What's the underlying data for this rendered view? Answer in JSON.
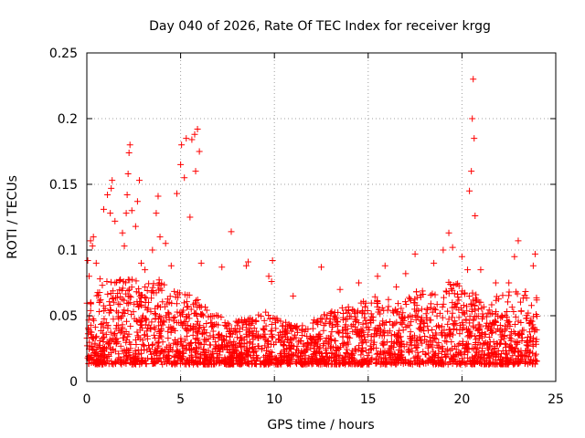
{
  "chart_data": {
    "type": "scatter",
    "title": "Day 040 of 2026, Rate Of TEC Index for receiver krgg",
    "xlabel": "GPS time / hours",
    "ylabel": "ROTI / TECUs",
    "xlim": [
      0,
      25
    ],
    "ylim": [
      0,
      0.25
    ],
    "x_ticks": [
      0,
      5,
      10,
      15,
      20,
      25
    ],
    "x_tick_labels": [
      "0",
      "5",
      "10",
      "15",
      "20",
      "25"
    ],
    "y_ticks": [
      0,
      0.05,
      0.1,
      0.15,
      0.2,
      0.25
    ],
    "y_tick_labels": [
      "0",
      "0.05",
      "0.1",
      "0.15",
      "0.2",
      "0.25"
    ],
    "grid": true,
    "marker": "plus",
    "marker_color": "#ff0000",
    "series": [
      {
        "name": "ROTI",
        "points": [
          [
            0.05,
            0.092
          ],
          [
            0.12,
            0.08
          ],
          [
            0.2,
            0.107
          ],
          [
            0.3,
            0.103
          ],
          [
            0.35,
            0.11
          ],
          [
            0.5,
            0.09
          ],
          [
            0.7,
            0.078
          ],
          [
            0.9,
            0.131
          ],
          [
            1.1,
            0.142
          ],
          [
            1.25,
            0.128
          ],
          [
            1.3,
            0.147
          ],
          [
            1.35,
            0.153
          ],
          [
            1.5,
            0.122
          ],
          [
            1.9,
            0.113
          ],
          [
            2.0,
            0.103
          ],
          [
            2.1,
            0.128
          ],
          [
            2.15,
            0.142
          ],
          [
            2.2,
            0.158
          ],
          [
            2.25,
            0.174
          ],
          [
            2.3,
            0.18
          ],
          [
            2.4,
            0.13
          ],
          [
            2.6,
            0.118
          ],
          [
            2.7,
            0.137
          ],
          [
            2.8,
            0.153
          ],
          [
            2.9,
            0.09
          ],
          [
            3.1,
            0.085
          ],
          [
            3.5,
            0.1
          ],
          [
            3.7,
            0.128
          ],
          [
            3.8,
            0.141
          ],
          [
            3.9,
            0.11
          ],
          [
            4.2,
            0.105
          ],
          [
            4.5,
            0.088
          ],
          [
            4.8,
            0.143
          ],
          [
            5.0,
            0.165
          ],
          [
            5.05,
            0.18
          ],
          [
            5.2,
            0.155
          ],
          [
            5.3,
            0.185
          ],
          [
            5.5,
            0.125
          ],
          [
            5.6,
            0.184
          ],
          [
            5.75,
            0.188
          ],
          [
            5.8,
            0.16
          ],
          [
            5.9,
            0.192
          ],
          [
            6.0,
            0.175
          ],
          [
            6.1,
            0.09
          ],
          [
            7.2,
            0.087
          ],
          [
            7.7,
            0.114
          ],
          [
            8.5,
            0.088
          ],
          [
            8.6,
            0.091
          ],
          [
            9.7,
            0.08
          ],
          [
            9.85,
            0.076
          ],
          [
            9.9,
            0.092
          ],
          [
            11.0,
            0.065
          ],
          [
            12.5,
            0.087
          ],
          [
            13.5,
            0.07
          ],
          [
            14.5,
            0.075
          ],
          [
            15.5,
            0.08
          ],
          [
            15.9,
            0.088
          ],
          [
            16.5,
            0.072
          ],
          [
            17.0,
            0.082
          ],
          [
            17.5,
            0.097
          ],
          [
            18.5,
            0.09
          ],
          [
            19.0,
            0.1
          ],
          [
            19.3,
            0.113
          ],
          [
            19.5,
            0.102
          ],
          [
            20.0,
            0.095
          ],
          [
            20.3,
            0.085
          ],
          [
            20.4,
            0.145
          ],
          [
            20.5,
            0.16
          ],
          [
            20.55,
            0.2
          ],
          [
            20.6,
            0.23
          ],
          [
            20.65,
            0.185
          ],
          [
            20.7,
            0.126
          ],
          [
            21.0,
            0.085
          ],
          [
            21.8,
            0.075
          ],
          [
            22.5,
            0.075
          ],
          [
            22.8,
            0.095
          ],
          [
            23.0,
            0.107
          ],
          [
            23.8,
            0.088
          ],
          [
            23.9,
            0.097
          ]
        ],
        "envelope": [
          [
            0.0,
            0.055
          ],
          [
            0.5,
            0.06
          ],
          [
            1.0,
            0.068
          ],
          [
            1.5,
            0.07
          ],
          [
            2.0,
            0.075
          ],
          [
            2.5,
            0.07
          ],
          [
            3.0,
            0.065
          ],
          [
            3.5,
            0.068
          ],
          [
            4.0,
            0.07
          ],
          [
            4.5,
            0.065
          ],
          [
            5.0,
            0.06
          ],
          [
            5.5,
            0.058
          ],
          [
            6.0,
            0.055
          ],
          [
            6.5,
            0.045
          ],
          [
            7.0,
            0.042
          ],
          [
            7.5,
            0.04
          ],
          [
            8.0,
            0.038
          ],
          [
            8.5,
            0.04
          ],
          [
            9.0,
            0.042
          ],
          [
            9.5,
            0.045
          ],
          [
            10.0,
            0.042
          ],
          [
            10.5,
            0.038
          ],
          [
            11.0,
            0.036
          ],
          [
            11.5,
            0.036
          ],
          [
            12.0,
            0.038
          ],
          [
            12.5,
            0.042
          ],
          [
            13.0,
            0.045
          ],
          [
            13.5,
            0.048
          ],
          [
            14.0,
            0.05
          ],
          [
            14.5,
            0.052
          ],
          [
            15.0,
            0.055
          ],
          [
            15.5,
            0.058
          ],
          [
            16.0,
            0.055
          ],
          [
            16.5,
            0.052
          ],
          [
            17.0,
            0.055
          ],
          [
            17.5,
            0.06
          ],
          [
            18.0,
            0.062
          ],
          [
            18.5,
            0.06
          ],
          [
            19.0,
            0.065
          ],
          [
            19.5,
            0.07
          ],
          [
            20.0,
            0.065
          ],
          [
            20.5,
            0.06
          ],
          [
            21.0,
            0.058
          ],
          [
            21.5,
            0.055
          ],
          [
            22.0,
            0.058
          ],
          [
            22.5,
            0.06
          ],
          [
            23.0,
            0.062
          ],
          [
            23.5,
            0.062
          ],
          [
            24.0,
            0.06
          ]
        ],
        "x_extent": [
          0,
          24
        ],
        "floor": 0.005,
        "dense_count": 2600
      }
    ]
  }
}
